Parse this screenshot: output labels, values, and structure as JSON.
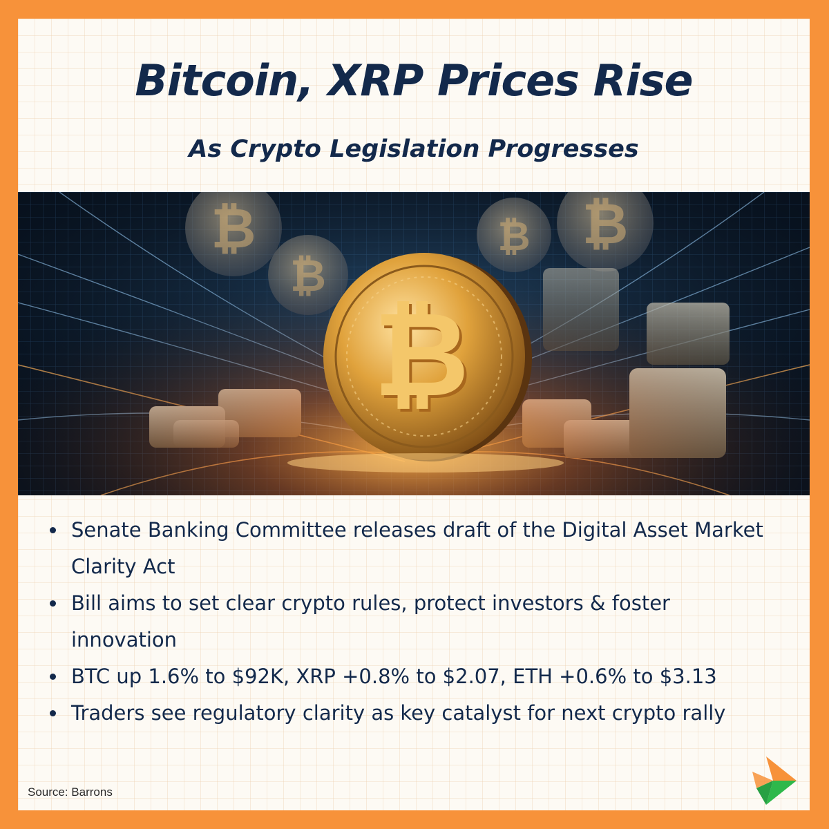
{
  "headline": "Bitcoin, XRP Prices Rise",
  "subheadline": "As Crypto Legislation Progresses",
  "hero_image": {
    "icon": "bitcoin-coin-icon",
    "colors": {
      "background": "#07101c",
      "coin_gold": "#d99a32",
      "glow_orange": "#ff9a2e",
      "glow_blue": "#5fb6ff"
    }
  },
  "bullets": [
    "Senate Banking Committee releases draft of the Digital Asset Market Clarity Act",
    "Bill aims to set clear crypto rules, protect investors & foster innovation",
    "BTC up 1.6% to $92K, XRP +0.8% to $2.07, ETH +0.6% to $3.13",
    "Traders see regulatory clarity as key catalyst for next crypto rally"
  ],
  "source": "Source: Barrons",
  "logo": {
    "icon": "brand-arrow-logo-icon",
    "colors": [
      "#f7923a",
      "#2eb84b"
    ]
  },
  "colors": {
    "frame": "#f7923a",
    "headline": "#13294b",
    "card": "#fdfaf4"
  }
}
